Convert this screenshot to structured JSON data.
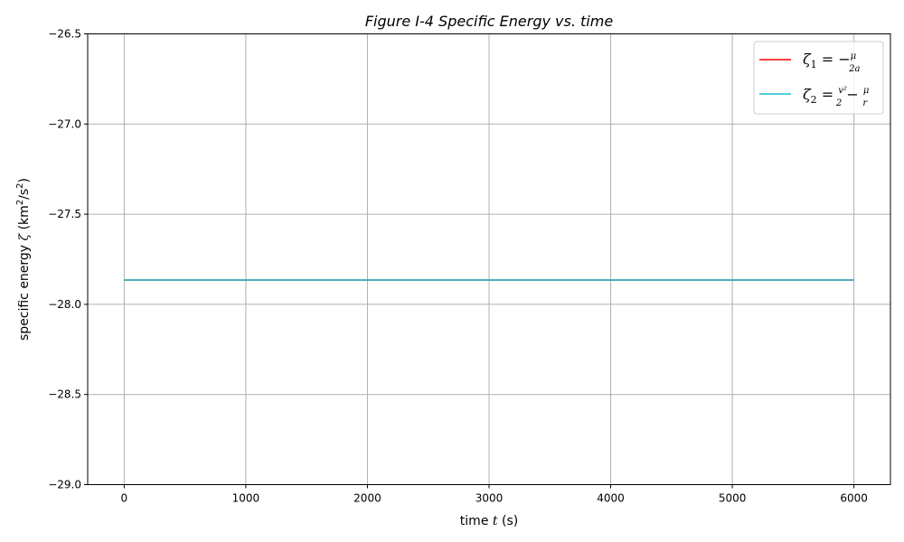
{
  "chart_data": {
    "type": "line",
    "title": "Figure I-4 Specific Energy vs. time",
    "xlabel": "time t (s)",
    "ylabel": "specific energy ζ (km²/s²)",
    "xlim": [
      -300,
      6300
    ],
    "ylim": [
      -29.0,
      -26.5
    ],
    "xticks": [
      0,
      1000,
      2000,
      3000,
      4000,
      5000,
      6000
    ],
    "yticks": [
      -29.0,
      -28.5,
      -28.0,
      -27.5,
      -27.0,
      -26.5
    ],
    "xtick_labels": [
      "0",
      "1000",
      "2000",
      "3000",
      "4000",
      "5000",
      "6000"
    ],
    "ytick_labels": [
      "−29.0",
      "−28.5",
      "−28.0",
      "−27.5",
      "−27.0",
      "−26.5"
    ],
    "grid": true,
    "legend_position": "top-right",
    "series": [
      {
        "name": "ζ1 = −μ/2a",
        "color": "#ff0000",
        "x": [
          0,
          6000
        ],
        "y": [
          -27.865,
          -27.865
        ]
      },
      {
        "name": "ζ2 = v²/2 − μ/r",
        "color": "#17becf",
        "x": [
          0,
          6000
        ],
        "y": [
          -27.865,
          -27.865
        ]
      }
    ]
  }
}
